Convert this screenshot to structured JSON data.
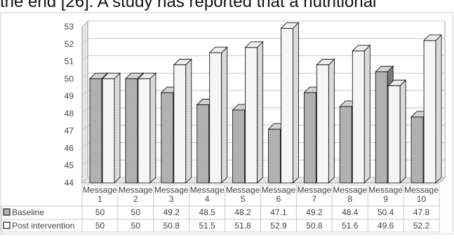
{
  "page": {
    "top_text": "the end [26]. A study has reported that a nutritional"
  },
  "chart_data": {
    "type": "bar",
    "title": "",
    "xlabel": "",
    "ylabel": "",
    "ylim": [
      44,
      53
    ],
    "yticks": [
      44,
      45,
      46,
      47,
      48,
      49,
      50,
      51,
      52,
      53
    ],
    "grid": true,
    "legend": "table-below",
    "categories": [
      [
        "Message",
        "1"
      ],
      [
        "Message",
        "2"
      ],
      [
        "Message",
        "3"
      ],
      [
        "Message",
        "4"
      ],
      [
        "Message",
        "5"
      ],
      [
        "Message",
        "6"
      ],
      [
        "Message",
        "7"
      ],
      [
        "Message",
        "8"
      ],
      [
        "Message",
        "9"
      ],
      [
        "Message",
        "10"
      ]
    ],
    "series": [
      {
        "name": "Baseline",
        "pattern": "gray-dotted",
        "values": [
          50,
          50,
          49.2,
          48.5,
          48.2,
          47.1,
          49.2,
          48.4,
          50.4,
          47.8
        ]
      },
      {
        "name": "Post intervention",
        "pattern": "white-dotted",
        "values": [
          50,
          50,
          50.8,
          51.5,
          51.8,
          52.9,
          50.8,
          51.6,
          49.6,
          52.2
        ]
      }
    ],
    "table_values": [
      [
        "50",
        "50",
        "49.2",
        "48.5",
        "48.2",
        "47.1",
        "49.2",
        "48.4",
        "50.4",
        "47.8"
      ],
      [
        "50",
        "50",
        "50.8",
        "51.5",
        "51.8",
        "52.9",
        "50.8",
        "51.6",
        "49.6",
        "52.2"
      ]
    ],
    "colors": {
      "baseline_front": "#b5b5b5",
      "baseline_side": "#7a7a7a",
      "baseline_top": "#d2d2d2",
      "post_front": "#ffffff",
      "post_side": "#d8d8d8",
      "post_top": "#eeeeee",
      "stroke": "#1a1a1a",
      "grid": "#c8c8c8",
      "wall": "#e6e6e6"
    }
  }
}
